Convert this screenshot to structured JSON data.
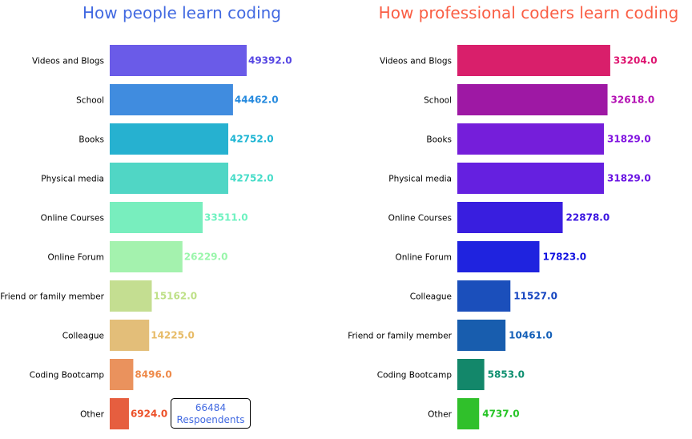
{
  "chart_data": [
    {
      "type": "bar",
      "orientation": "horizontal",
      "title": "How people learn coding",
      "title_color": "#4169E1",
      "categories": [
        "Videos and Blogs",
        "School",
        "Books",
        "Physical media",
        "Online Courses",
        "Online Forum",
        "Friend or family member",
        "Colleague",
        "Coding Bootcamp",
        "Other"
      ],
      "values": [
        49392.0,
        44462.0,
        42752.0,
        42752.0,
        33511.0,
        26229.0,
        15162.0,
        14225.0,
        8496.0,
        6924.0
      ],
      "value_labels": [
        "49392.0",
        "44462.0",
        "42752.0",
        "42752.0",
        "33511.0",
        "26229.0",
        "15162.0",
        "14225.0",
        "8496.0",
        "6924.0"
      ],
      "colors": [
        "#6A5BE8",
        "#408CDF",
        "#26B1D0",
        "#50D6C5",
        "#78EEBE",
        "#A4F2AE",
        "#C4DE91",
        "#E3BE79",
        "#EA925D",
        "#E65E3F"
      ],
      "label_colors": [
        "#5747E3",
        "#268ADE",
        "#1DB5D3",
        "#46DCC8",
        "#6EF2C0",
        "#9AF6AB",
        "#BEE087",
        "#E7BB67",
        "#EE8A4A",
        "#EC5028"
      ],
      "xlim": [
        0,
        52000
      ],
      "grid": false,
      "annotation": {
        "count": "66484",
        "label": "Respoendents",
        "color": "#4169E1"
      }
    },
    {
      "type": "bar",
      "orientation": "horizontal",
      "title": "How professional coders learn coding",
      "title_color": "#FA5E44",
      "categories": [
        "Videos and Blogs",
        "School",
        "Books",
        "Physical media",
        "Online Courses",
        "Online Forum",
        "Colleague",
        "Friend or family member",
        "Coding Bootcamp",
        "Other"
      ],
      "values": [
        33204.0,
        32618.0,
        31829.0,
        31829.0,
        22878.0,
        17823.0,
        11527.0,
        10461.0,
        5853.0,
        4737.0
      ],
      "value_labels": [
        "33204.0",
        "32618.0",
        "31829.0",
        "31829.0",
        "22878.0",
        "17823.0",
        "11527.0",
        "10461.0",
        "5853.0",
        "4737.0"
      ],
      "colors": [
        "#D91F6B",
        "#9E18A4",
        "#751EDA",
        "#6520E0",
        "#391EDF",
        "#1F23DF",
        "#1B4FBB",
        "#185DAE",
        "#13876A",
        "#30C02B"
      ],
      "label_colors": [
        "#DE1470",
        "#B30FB3",
        "#8013E0",
        "#6A14E2",
        "#3A14E0",
        "#1010E0",
        "#1545C0",
        "#1560B8",
        "#0F9070",
        "#25C425"
      ],
      "xlim": [
        0,
        36000
      ],
      "grid": false
    }
  ]
}
